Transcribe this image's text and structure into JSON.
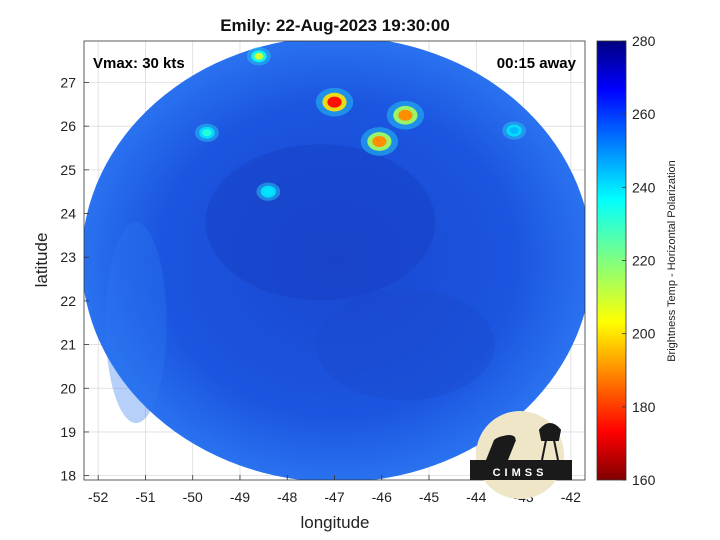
{
  "chart_data": {
    "type": "heatmap",
    "title": "Emily: 22-Aug-2023 19:30:00",
    "xlabel": "longitude",
    "ylabel": "latitude",
    "xlim": [
      -52.3,
      -41.7
    ],
    "ylim": [
      17.9,
      27.95
    ],
    "x_ticks": [
      "-52",
      "-51",
      "-50",
      "-49",
      "-48",
      "-47",
      "-46",
      "-45",
      "-44",
      "-43",
      "-42"
    ],
    "y_ticks": [
      "18",
      "19",
      "20",
      "21",
      "22",
      "23",
      "24",
      "25",
      "26",
      "27"
    ],
    "grid": true,
    "swath": {
      "center_lon": -46.95,
      "center_lat": 22.95,
      "radius_lon": 5.4,
      "radius_lat": 5.1,
      "background_value": 262
    },
    "features": [
      {
        "lon": -47.0,
        "lat": 26.55,
        "value": 175
      },
      {
        "lon": -45.5,
        "lat": 26.25,
        "value": 190
      },
      {
        "lon": -46.05,
        "lat": 25.65,
        "value": 190
      },
      {
        "lon": -48.6,
        "lat": 27.6,
        "value": 210
      },
      {
        "lon": -49.7,
        "lat": 25.85,
        "value": 232
      },
      {
        "lon": -48.4,
        "lat": 24.5,
        "value": 240
      },
      {
        "lon": -43.2,
        "lat": 25.9,
        "value": 245
      }
    ],
    "annotations": {
      "vmax": "Vmax: 30 kts",
      "away": "00:15 away"
    },
    "colorbar": {
      "label": "Brightness Temp - Horizontal Polarization",
      "min": 160,
      "max": 280,
      "ticks": [
        "280",
        "260",
        "240",
        "220",
        "200",
        "180",
        "160"
      ],
      "colormap": "jet"
    }
  },
  "logo": {
    "text": "CIMSS"
  }
}
